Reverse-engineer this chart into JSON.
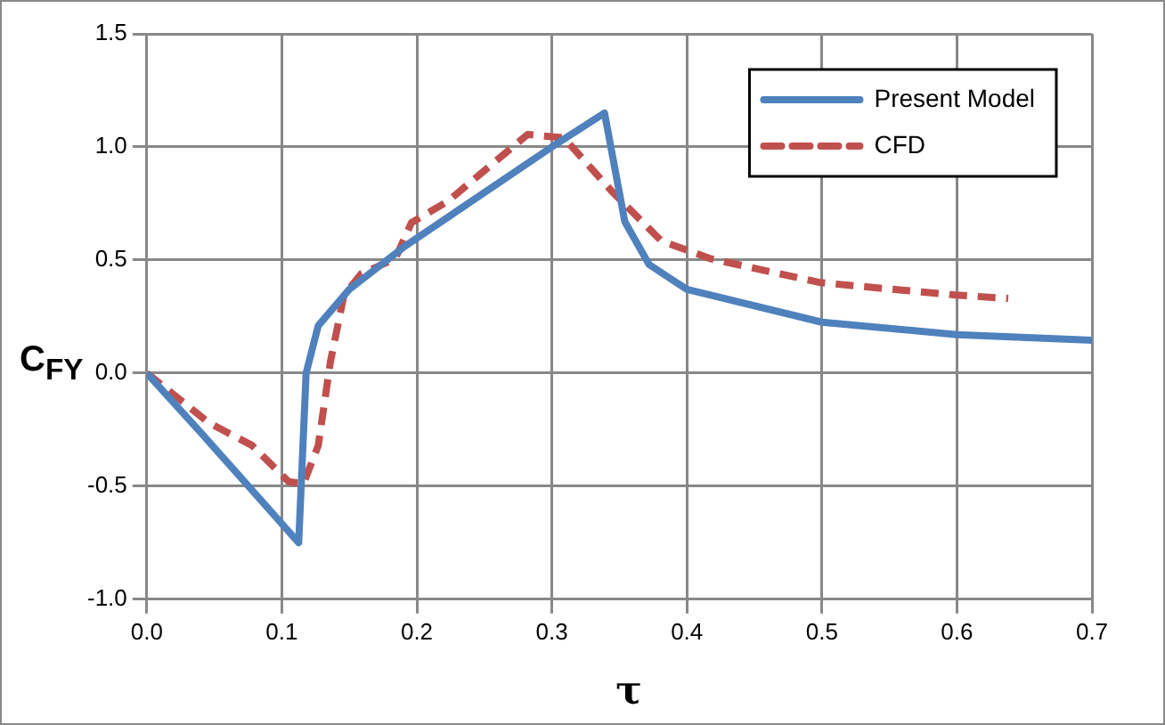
{
  "chart_data": {
    "type": "line",
    "xlabel": "τ",
    "ylabel": "C$_{FY}$",
    "xlim": [
      0,
      0.7
    ],
    "xticks": [
      {
        "value": 0,
        "label": "0.0"
      },
      0.1,
      0.2,
      0.3,
      0.4,
      0.5,
      0.6,
      0.7
    ],
    "ylim": [
      -1,
      1.5
    ],
    "yticks": [
      {
        "value": -1,
        "label": "-1.0"
      },
      -0.5,
      {
        "value": 0,
        "label": "0.0"
      },
      0.5,
      {
        "value": 1,
        "label": "1.0"
      },
      1.5
    ],
    "grid": true,
    "legend": "top right",
    "marker": "none",
    "series": [
      {
        "name": "Present Model",
        "color": "#4f81bd",
        "line_style": "solid",
        "x": [
          0,
          0.041,
          0.1125,
          0.118,
          0.127,
          0.15,
          0.191,
          0.3,
          0.339,
          0.354,
          0.372,
          0.4,
          0.5,
          0.6,
          0.7
        ],
        "values": [
          0,
          -0.27,
          -0.75,
          0,
          0.21,
          0.37,
          0.56,
          1.0,
          1.15,
          0.67,
          0.48,
          0.37,
          0.225,
          0.17,
          0.145
        ]
      },
      {
        "name": "CFD",
        "color": "#c0504d",
        "line_style": "dashed",
        "x": [
          0,
          0.046,
          0.078,
          0.105,
          0.116,
          0.127,
          0.136,
          0.146,
          0.159,
          0.184,
          0.196,
          0.223,
          0.282,
          0.309,
          0.345,
          0.381,
          0.418,
          0.499,
          0.599,
          0.638
        ],
        "values": [
          0,
          -0.22,
          -0.32,
          -0.48,
          -0.49,
          -0.32,
          0.05,
          0.345,
          0.44,
          0.505,
          0.665,
          0.76,
          1.055,
          1.04,
          0.8,
          0.585,
          0.505,
          0.4,
          0.345,
          0.33
        ]
      }
    ]
  }
}
